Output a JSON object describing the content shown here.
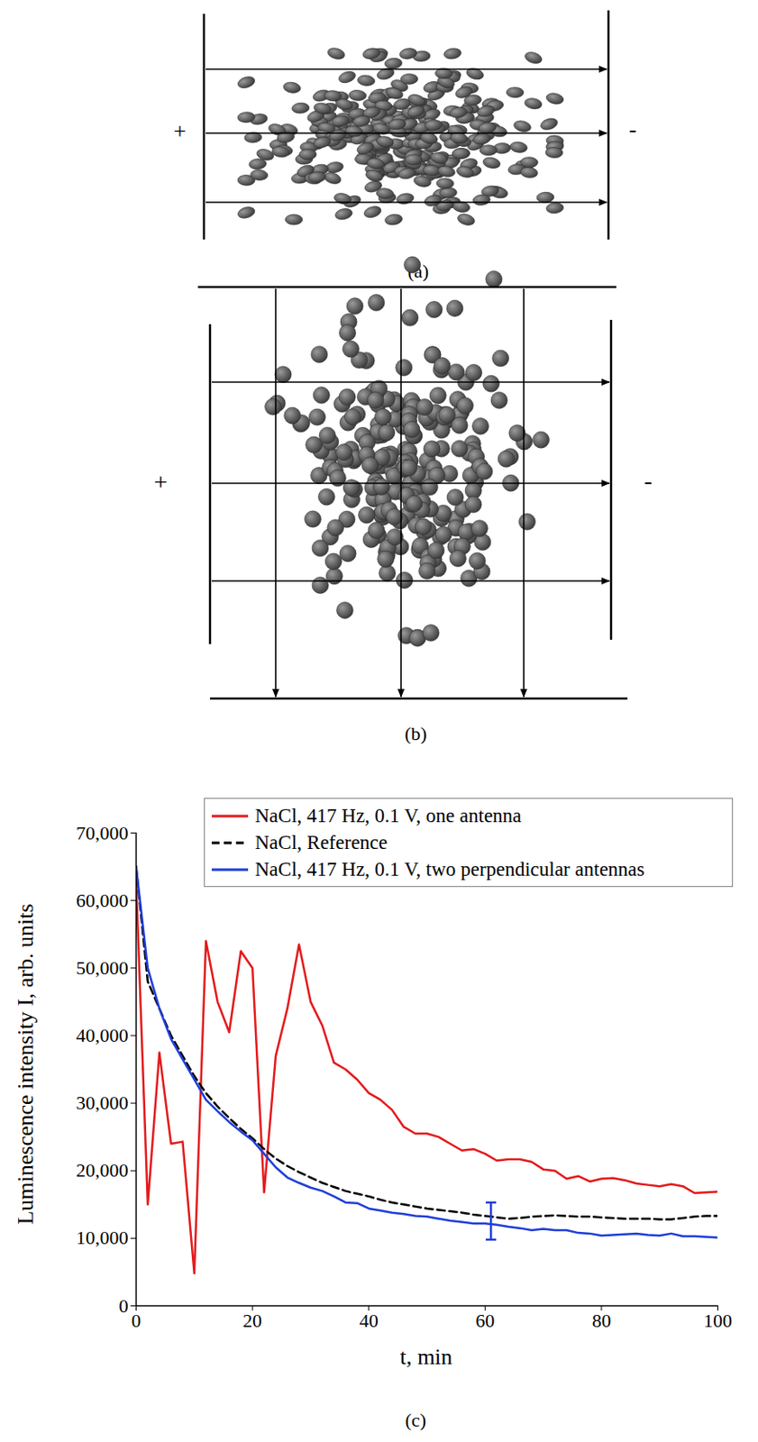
{
  "figure": {
    "a": {
      "label": "(a)",
      "anode": "+",
      "cathode": "-"
    },
    "b": {
      "label": "(b)",
      "anode": "+",
      "cathode": "-"
    },
    "c": {
      "label": "(c)"
    }
  },
  "chart_data": {
    "type": "line",
    "x_label": "t, min",
    "y_label": "Luminescence intensity I, arb. units",
    "x": [
      0,
      2,
      4,
      6,
      8,
      10,
      12,
      14,
      16,
      18,
      20,
      22,
      24,
      26,
      28,
      30,
      32,
      34,
      36,
      38,
      40,
      42,
      44,
      46,
      48,
      50,
      52,
      54,
      56,
      58,
      60,
      62,
      64,
      66,
      68,
      70,
      72,
      74,
      76,
      78,
      80,
      82,
      84,
      86,
      88,
      90,
      92,
      94,
      96,
      98,
      100
    ],
    "series": [
      {
        "name": "NaCl, 417 Hz, 0.1 V, one antenna",
        "color": "#e41a1c",
        "line_style": "solid",
        "values": [
          63000,
          15000,
          37500,
          24000,
          24300,
          4800,
          54000,
          45000,
          40500,
          52500,
          50000,
          16800,
          37000,
          44000,
          53500,
          45000,
          41500,
          36000,
          35000,
          33500,
          31500,
          30500,
          29000,
          26500,
          25500,
          25500,
          25000,
          24000,
          23000,
          23200,
          22500,
          21500,
          21700,
          21700,
          21300,
          20200,
          20000,
          18800,
          19200,
          18400,
          18800,
          18900,
          18600,
          18100,
          17900,
          17700,
          18000,
          17700,
          16700,
          16800,
          16900
        ]
      },
      {
        "name": "NaCl, Reference",
        "color": "#000000",
        "line_style": "dashed",
        "values": [
          65000,
          48000,
          44000,
          40000,
          37000,
          34000,
          31500,
          29500,
          27800,
          26200,
          24800,
          23200,
          21800,
          20700,
          19800,
          19000,
          18200,
          17600,
          17000,
          16600,
          16200,
          15700,
          15300,
          15000,
          14700,
          14400,
          14200,
          14000,
          13800,
          13500,
          13300,
          13100,
          12900,
          13000,
          13200,
          13300,
          13400,
          13300,
          13200,
          13200,
          13100,
          13000,
          12900,
          12900,
          12900,
          12800,
          12800,
          13000,
          13200,
          13300,
          13300
        ]
      },
      {
        "name": "NaCl, 417 Hz, 0.1 V, two perpendicular antennas",
        "color": "#1f3fd9",
        "line_style": "solid",
        "values": [
          65000,
          50000,
          44000,
          39500,
          36500,
          33500,
          30500,
          28800,
          27200,
          25800,
          24500,
          22500,
          20500,
          19000,
          18200,
          17500,
          17000,
          16200,
          15300,
          15200,
          14400,
          14100,
          13800,
          13600,
          13300,
          13200,
          12900,
          12600,
          12400,
          12200,
          12200,
          12000,
          11700,
          11500,
          11200,
          11400,
          11200,
          11200,
          10800,
          10700,
          10400,
          10500,
          10600,
          10700,
          10500,
          10400,
          10700,
          10300,
          10300,
          10200,
          10100
        ],
        "error_bars": {
          "x": [
            61
          ],
          "low": [
            9800
          ],
          "high": [
            15300
          ]
        }
      }
    ],
    "xlim": [
      0,
      100
    ],
    "xticks": [
      0,
      20,
      40,
      60,
      80,
      100
    ],
    "ylim": [
      0,
      70000
    ],
    "yticks": [
      0,
      {
        "value": 10000,
        "label": "10,000"
      },
      {
        "value": 20000,
        "label": "20,000"
      },
      {
        "value": 30000,
        "label": "30,000"
      },
      {
        "value": 40000,
        "label": "40,000"
      },
      {
        "value": 50000,
        "label": "50,000"
      },
      {
        "value": 60000,
        "label": "60,000"
      },
      {
        "value": 70000,
        "label": "70,000"
      }
    ],
    "grid": false,
    "legend": "top-right"
  }
}
